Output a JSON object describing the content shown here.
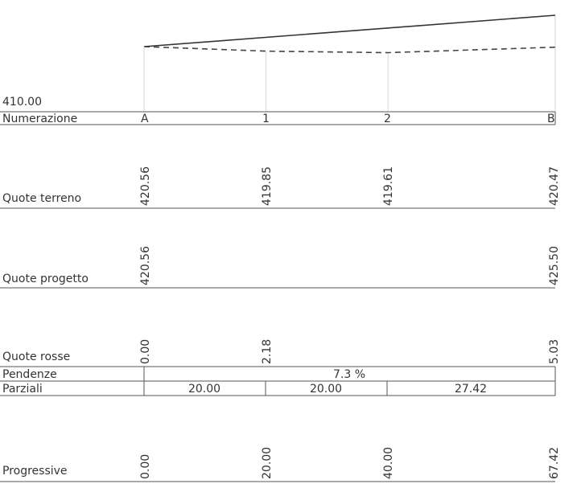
{
  "datum_label": "410.00",
  "rows": {
    "numerazione": "Numerazione",
    "quote_terreno": "Quote terreno",
    "quote_progetto": "Quote progetto",
    "quote_rosse": "Quote rosse",
    "pendenze": "Pendenze",
    "parziali": "Parziali",
    "progressive": "Progressive"
  },
  "stations": [
    {
      "id": "A",
      "numerazione": "A",
      "quota_terreno": "420.56",
      "quota_progetto": "420.56",
      "quota_rossa": "0.00",
      "progressiva": "0.00"
    },
    {
      "id": "1",
      "numerazione": "1",
      "quota_terreno": "419.85",
      "quota_progetto": "",
      "quota_rossa": "2.18",
      "progressiva": "20.00"
    },
    {
      "id": "2",
      "numerazione": "2",
      "quota_terreno": "419.61",
      "quota_progetto": "",
      "quota_rossa": "",
      "progressiva": "40.00"
    },
    {
      "id": "B",
      "numerazione": "B",
      "quota_terreno": "420.47",
      "quota_progetto": "425.50",
      "quota_rossa": "5.03",
      "progressiva": "67.42"
    }
  ],
  "pendenze": [
    "7.3 %"
  ],
  "parziali": [
    "20.00",
    "20.00",
    "27.42"
  ],
  "profile": {
    "progressive": [
      0,
      20,
      40,
      67.42
    ],
    "ground": [
      420.56,
      419.85,
      419.61,
      420.47
    ],
    "design": [
      420.56,
      425.5
    ]
  }
}
